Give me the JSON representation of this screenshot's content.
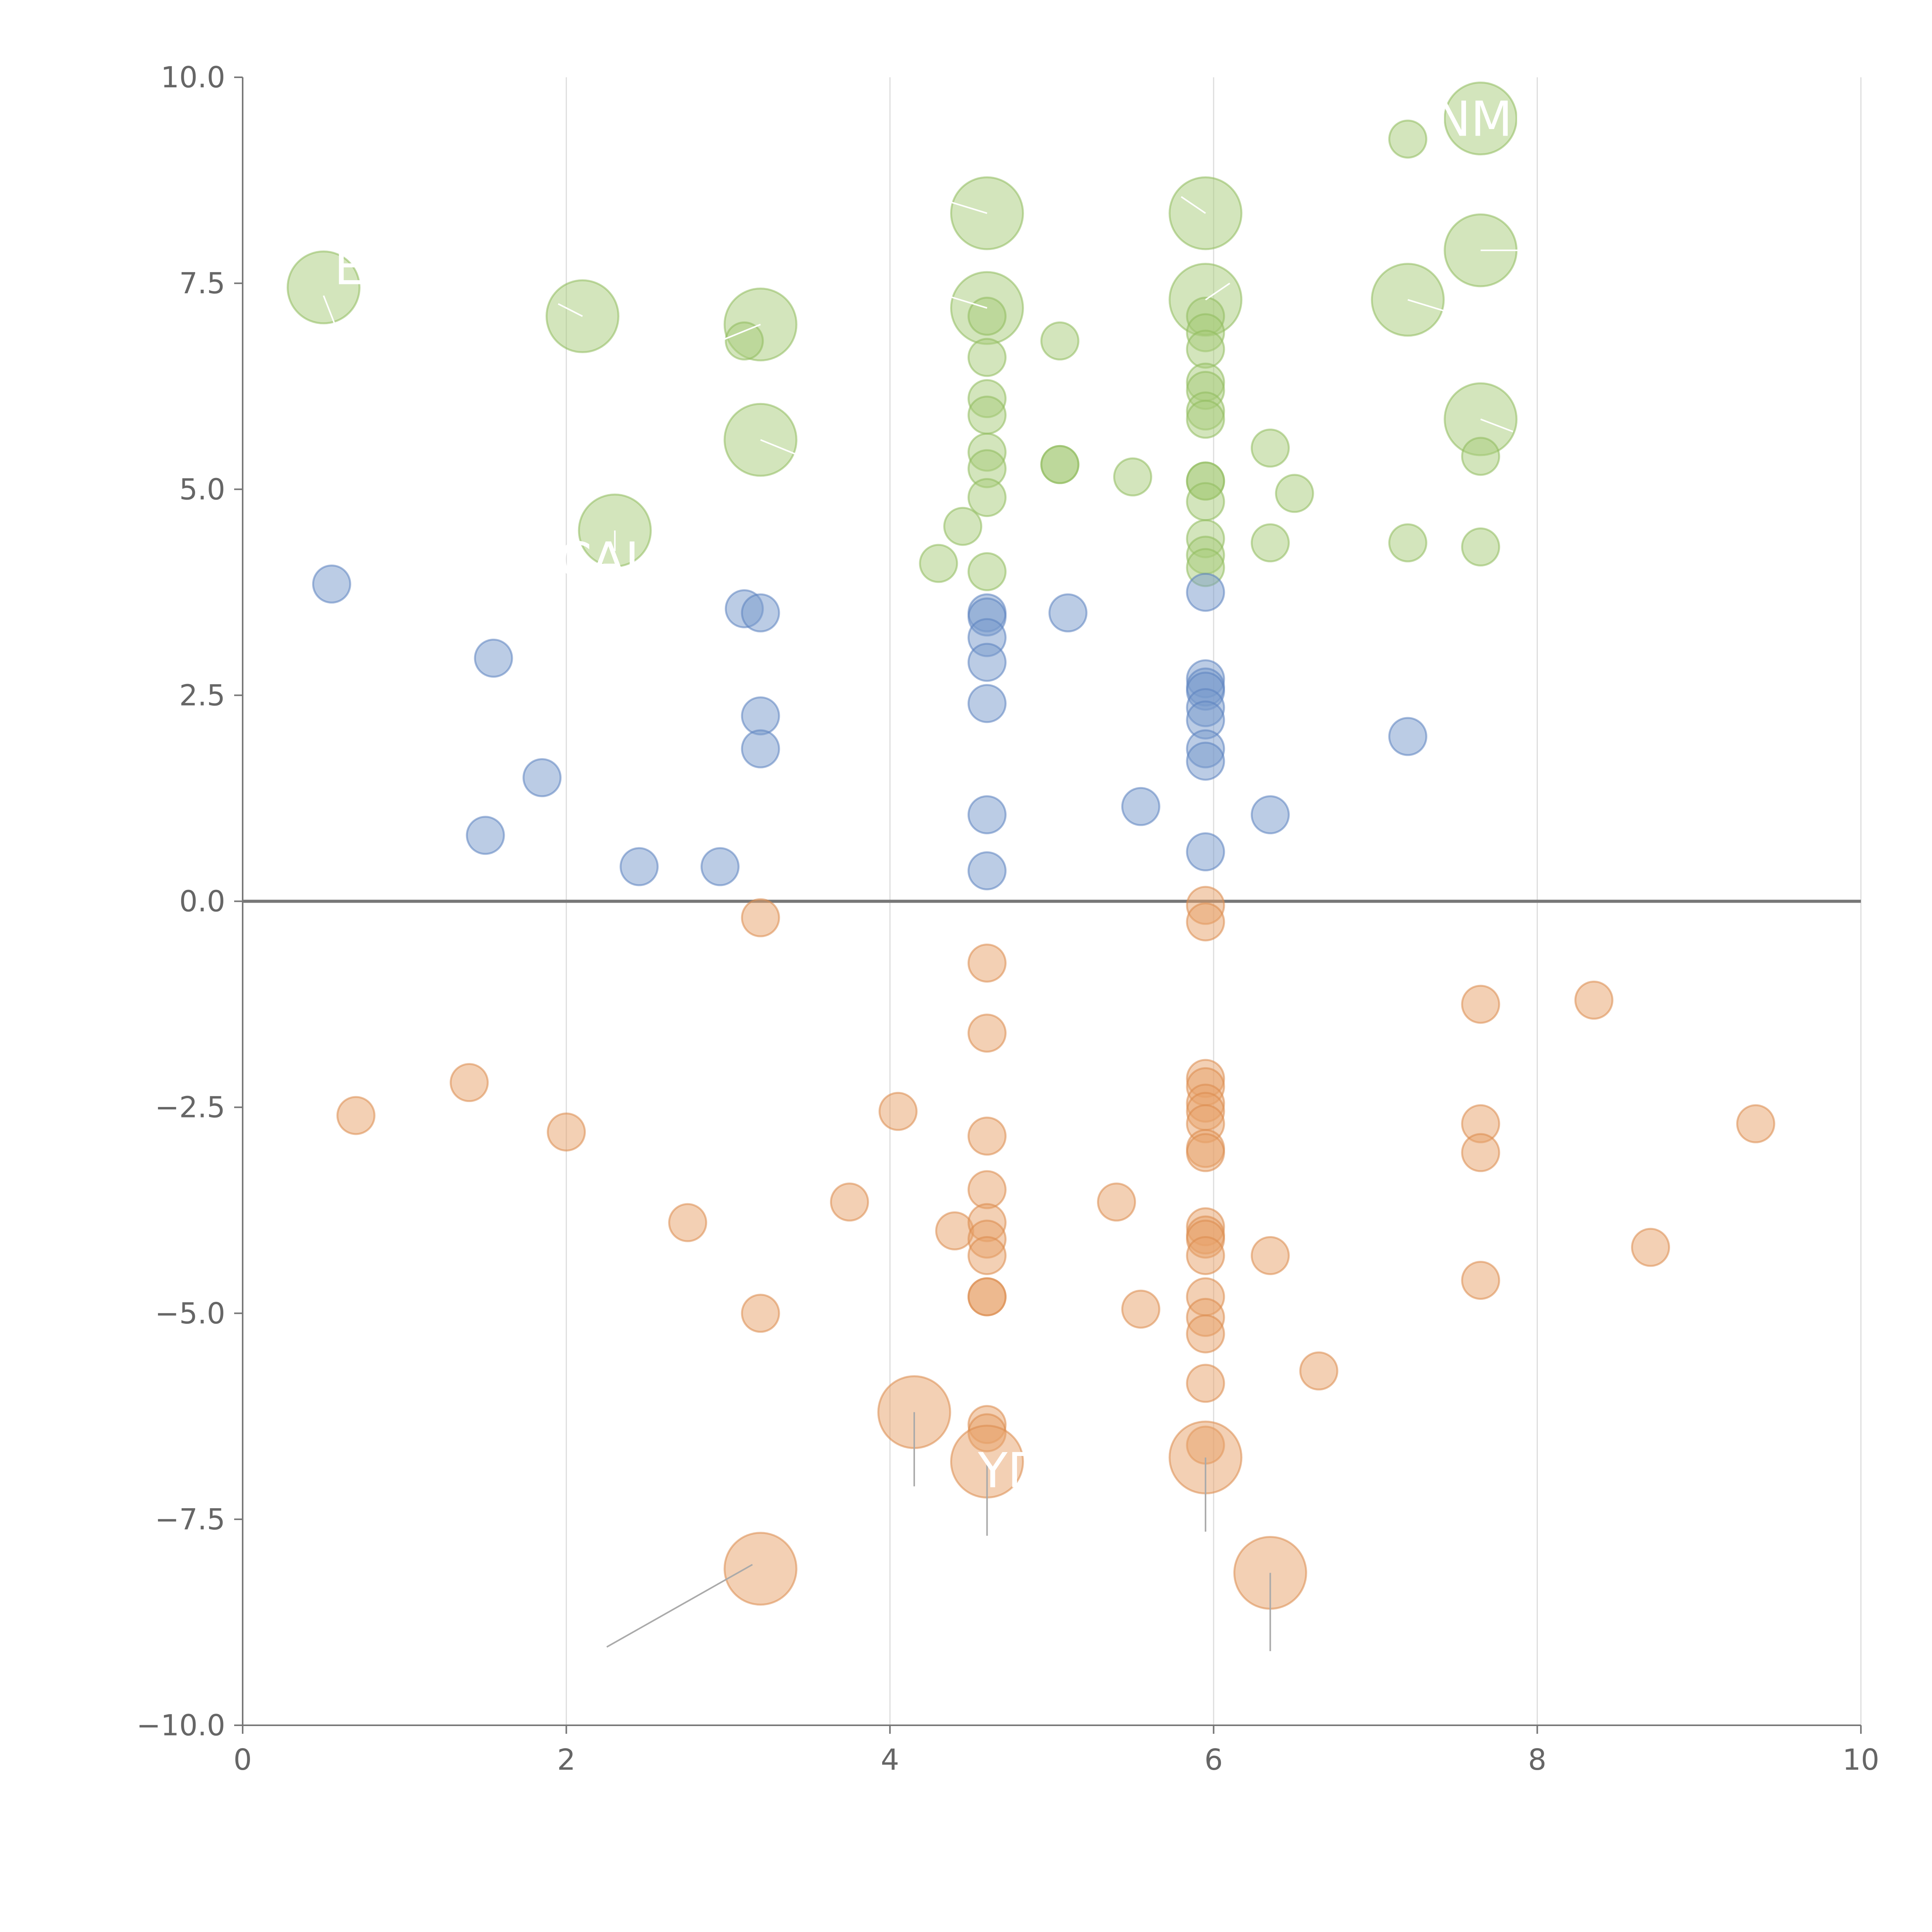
{
  "chart_data": {
    "type": "scatter",
    "title": "",
    "xlabel": "",
    "ylabel": "",
    "xlim": [
      0,
      10
    ],
    "ylim": [
      -10,
      10
    ],
    "x_ticks": [
      0,
      2,
      4,
      6,
      8,
      10
    ],
    "x_tick_labels": [
      "0",
      "2",
      "4",
      "6",
      "8",
      "10"
    ],
    "y_ticks": [
      10,
      7.5,
      5,
      2.5,
      0,
      -2.5,
      -5,
      -7.5,
      -10
    ],
    "y_tick_labels": [
      "10.0",
      "7.5",
      "5.0",
      "2.5",
      "0.0",
      "−2.5",
      "−5.0",
      "−7.5",
      "−10.0"
    ],
    "grid_x": true,
    "grid_y": false,
    "zero_line": true,
    "series": [
      {
        "name": "green",
        "color": "#a8cc7a",
        "stroke": "#8fbb5c",
        "points": [
          {
            "x": 0.5,
            "y": 7.45,
            "large": true
          },
          {
            "x": 2.1,
            "y": 7.1,
            "large": true
          },
          {
            "x": 3.2,
            "y": 7.0,
            "large": true
          },
          {
            "x": 3.2,
            "y": 5.6,
            "large": true
          },
          {
            "x": 2.3,
            "y": 4.5,
            "large": true
          },
          {
            "x": 4.6,
            "y": 8.35,
            "large": true
          },
          {
            "x": 4.6,
            "y": 7.2,
            "large": true
          },
          {
            "x": 5.95,
            "y": 8.35,
            "large": true
          },
          {
            "x": 5.95,
            "y": 7.3,
            "large": true
          },
          {
            "x": 7.65,
            "y": 9.5,
            "large": true
          },
          {
            "x": 7.65,
            "y": 7.9,
            "large": true
          },
          {
            "x": 7.65,
            "y": 5.85,
            "large": true
          },
          {
            "x": 7.2,
            "y": 7.3,
            "large": true
          },
          {
            "x": 7.2,
            "y": 9.25
          },
          {
            "x": 3.1,
            "y": 6.8
          },
          {
            "x": 4.6,
            "y": 7.1
          },
          {
            "x": 4.6,
            "y": 6.6
          },
          {
            "x": 4.6,
            "y": 6.1
          },
          {
            "x": 4.6,
            "y": 5.9
          },
          {
            "x": 4.6,
            "y": 5.45
          },
          {
            "x": 4.6,
            "y": 5.25
          },
          {
            "x": 4.6,
            "y": 4.9
          },
          {
            "x": 4.6,
            "y": 4.0
          },
          {
            "x": 4.45,
            "y": 4.55
          },
          {
            "x": 4.3,
            "y": 4.1
          },
          {
            "x": 5.05,
            "y": 6.8
          },
          {
            "x": 5.05,
            "y": 5.3
          },
          {
            "x": 5.05,
            "y": 5.3
          },
          {
            "x": 5.5,
            "y": 5.15
          },
          {
            "x": 5.95,
            "y": 7.1
          },
          {
            "x": 5.95,
            "y": 6.9
          },
          {
            "x": 5.95,
            "y": 6.7
          },
          {
            "x": 5.95,
            "y": 6.3
          },
          {
            "x": 5.95,
            "y": 6.2
          },
          {
            "x": 5.95,
            "y": 5.95
          },
          {
            "x": 5.95,
            "y": 5.85
          },
          {
            "x": 5.95,
            "y": 5.1
          },
          {
            "x": 5.95,
            "y": 5.1
          },
          {
            "x": 5.95,
            "y": 4.85
          },
          {
            "x": 5.95,
            "y": 4.4
          },
          {
            "x": 5.95,
            "y": 4.2
          },
          {
            "x": 5.95,
            "y": 4.05
          },
          {
            "x": 6.35,
            "y": 5.5
          },
          {
            "x": 6.5,
            "y": 4.95
          },
          {
            "x": 6.35,
            "y": 4.35
          },
          {
            "x": 7.2,
            "y": 4.35
          },
          {
            "x": 7.65,
            "y": 5.4
          },
          {
            "x": 7.65,
            "y": 4.3
          }
        ]
      },
      {
        "name": "blue",
        "color": "#7799cc",
        "stroke": "#5b82c0",
        "points": [
          {
            "x": 0.55,
            "y": 3.85
          },
          {
            "x": 1.55,
            "y": 2.95
          },
          {
            "x": 1.85,
            "y": 1.5
          },
          {
            "x": 1.5,
            "y": 0.8
          },
          {
            "x": 2.45,
            "y": 0.42
          },
          {
            "x": 2.95,
            "y": 0.42
          },
          {
            "x": 3.1,
            "y": 3.55
          },
          {
            "x": 3.2,
            "y": 3.5
          },
          {
            "x": 3.2,
            "y": 2.25
          },
          {
            "x": 3.2,
            "y": 1.85
          },
          {
            "x": 4.6,
            "y": 3.5
          },
          {
            "x": 4.6,
            "y": 3.45
          },
          {
            "x": 4.6,
            "y": 3.2
          },
          {
            "x": 4.6,
            "y": 2.9
          },
          {
            "x": 4.6,
            "y": 2.4
          },
          {
            "x": 4.6,
            "y": 1.05
          },
          {
            "x": 4.6,
            "y": 0.37
          },
          {
            "x": 5.1,
            "y": 3.5
          },
          {
            "x": 5.55,
            "y": 1.15
          },
          {
            "x": 5.95,
            "y": 3.75
          },
          {
            "x": 5.95,
            "y": 2.7
          },
          {
            "x": 5.95,
            "y": 2.6
          },
          {
            "x": 5.95,
            "y": 2.55
          },
          {
            "x": 5.95,
            "y": 2.35
          },
          {
            "x": 5.95,
            "y": 2.2
          },
          {
            "x": 5.95,
            "y": 1.85
          },
          {
            "x": 5.95,
            "y": 1.7
          },
          {
            "x": 5.95,
            "y": 0.6
          },
          {
            "x": 6.35,
            "y": 1.05
          },
          {
            "x": 7.2,
            "y": 2.0
          }
        ]
      },
      {
        "name": "orange",
        "color": "#e8a26a",
        "stroke": "#db8a4d",
        "points": [
          {
            "x": 0.7,
            "y": -2.6
          },
          {
            "x": 1.4,
            "y": -2.2
          },
          {
            "x": 2.0,
            "y": -2.8
          },
          {
            "x": 2.75,
            "y": -3.9
          },
          {
            "x": 3.2,
            "y": -0.2
          },
          {
            "x": 3.2,
            "y": -5.0
          },
          {
            "x": 3.75,
            "y": -3.65
          },
          {
            "x": 4.05,
            "y": -2.55
          },
          {
            "x": 4.4,
            "y": -4.0
          },
          {
            "x": 4.6,
            "y": -0.75
          },
          {
            "x": 4.6,
            "y": -1.6
          },
          {
            "x": 4.6,
            "y": -2.85
          },
          {
            "x": 4.6,
            "y": -3.5
          },
          {
            "x": 4.6,
            "y": -3.9
          },
          {
            "x": 4.6,
            "y": -4.1
          },
          {
            "x": 4.6,
            "y": -4.3
          },
          {
            "x": 4.6,
            "y": -4.8
          },
          {
            "x": 4.6,
            "y": -4.8
          },
          {
            "x": 4.6,
            "y": -6.35
          },
          {
            "x": 4.6,
            "y": -6.45
          },
          {
            "x": 5.4,
            "y": -3.65
          },
          {
            "x": 5.55,
            "y": -4.95
          },
          {
            "x": 5.95,
            "y": -0.05
          },
          {
            "x": 5.95,
            "y": -0.25
          },
          {
            "x": 5.95,
            "y": -2.15
          },
          {
            "x": 5.95,
            "y": -2.25
          },
          {
            "x": 5.95,
            "y": -2.45
          },
          {
            "x": 5.95,
            "y": -2.55
          },
          {
            "x": 5.95,
            "y": -2.7
          },
          {
            "x": 5.95,
            "y": -3.0
          },
          {
            "x": 5.95,
            "y": -3.05
          },
          {
            "x": 5.95,
            "y": -3.95
          },
          {
            "x": 5.95,
            "y": -4.05
          },
          {
            "x": 5.95,
            "y": -4.1
          },
          {
            "x": 5.95,
            "y": -4.3
          },
          {
            "x": 5.95,
            "y": -4.8
          },
          {
            "x": 5.95,
            "y": -5.05
          },
          {
            "x": 5.95,
            "y": -5.25
          },
          {
            "x": 5.95,
            "y": -5.85
          },
          {
            "x": 5.95,
            "y": -6.6
          },
          {
            "x": 6.35,
            "y": -4.3
          },
          {
            "x": 6.65,
            "y": -5.7
          },
          {
            "x": 7.65,
            "y": -1.25
          },
          {
            "x": 7.65,
            "y": -2.7
          },
          {
            "x": 7.65,
            "y": -3.05
          },
          {
            "x": 7.65,
            "y": -4.6
          },
          {
            "x": 8.35,
            "y": -1.2
          },
          {
            "x": 8.7,
            "y": -4.2
          },
          {
            "x": 9.35,
            "y": -2.7
          },
          {
            "x": 4.15,
            "y": -6.2,
            "large": true
          },
          {
            "x": 4.6,
            "y": -6.8,
            "large": true
          },
          {
            "x": 5.95,
            "y": -6.75,
            "large": true
          },
          {
            "x": 3.2,
            "y": -8.1,
            "large": true
          },
          {
            "x": 6.35,
            "y": -8.15,
            "large": true
          }
        ]
      }
    ],
    "annotations": [
      {
        "text": "NMI",
        "x": 7.65,
        "y": 9.5,
        "color": "#ffffff"
      },
      {
        "text": "CAI",
        "x": 2.2,
        "y": 4.15,
        "color": "#ffffff"
      },
      {
        "text": "E",
        "x": 0.66,
        "y": 7.7,
        "color": "#ffffff"
      },
      {
        "text": "YD",
        "x": 4.75,
        "y": -6.9,
        "color": "#ffffff"
      }
    ],
    "leaders": [
      {
        "color": "#ffffff",
        "points": [
          [
            0.5,
            7.35
          ],
          [
            0.57,
            7.0
          ]
        ]
      },
      {
        "color": "#ffffff",
        "points": [
          [
            2.1,
            7.1
          ],
          [
            1.95,
            7.25
          ]
        ]
      },
      {
        "color": "#ffffff",
        "points": [
          [
            3.2,
            7.0
          ],
          [
            2.95,
            6.8
          ]
        ]
      },
      {
        "color": "#ffffff",
        "points": [
          [
            3.2,
            5.6
          ],
          [
            3.45,
            5.4
          ]
        ]
      },
      {
        "color": "#ffffff",
        "points": [
          [
            4.6,
            8.35
          ],
          [
            4.35,
            8.5
          ]
        ]
      },
      {
        "color": "#ffffff",
        "points": [
          [
            4.6,
            7.2
          ],
          [
            4.35,
            7.35
          ]
        ]
      },
      {
        "color": "#ffffff",
        "points": [
          [
            5.95,
            8.35
          ],
          [
            5.8,
            8.55
          ]
        ]
      },
      {
        "color": "#ffffff",
        "points": [
          [
            5.95,
            7.3
          ],
          [
            6.1,
            7.5
          ]
        ]
      },
      {
        "color": "#ffffff",
        "points": [
          [
            7.2,
            7.3
          ],
          [
            7.45,
            7.15
          ]
        ]
      },
      {
        "color": "#ffffff",
        "points": [
          [
            7.65,
            7.9
          ],
          [
            7.95,
            7.9
          ]
        ]
      },
      {
        "color": "#ffffff",
        "points": [
          [
            7.65,
            5.85
          ],
          [
            7.85,
            5.7
          ]
        ]
      },
      {
        "color": "#ffffff",
        "points": [
          [
            2.3,
            4.5
          ],
          [
            2.3,
            4.25
          ]
        ]
      },
      {
        "color": "#aaaaaa",
        "points": [
          [
            4.15,
            -6.2
          ],
          [
            4.15,
            -7.1
          ]
        ]
      },
      {
        "color": "#aaaaaa",
        "points": [
          [
            4.6,
            -6.8
          ],
          [
            4.6,
            -7.7
          ]
        ]
      },
      {
        "color": "#aaaaaa",
        "points": [
          [
            5.95,
            -6.75
          ],
          [
            5.95,
            -7.65
          ]
        ]
      },
      {
        "color": "#aaaaaa",
        "points": [
          [
            3.15,
            -8.05
          ],
          [
            2.25,
            -9.05
          ]
        ]
      },
      {
        "color": "#aaaaaa",
        "points": [
          [
            6.35,
            -8.15
          ],
          [
            6.35,
            -9.1
          ]
        ]
      }
    ]
  }
}
